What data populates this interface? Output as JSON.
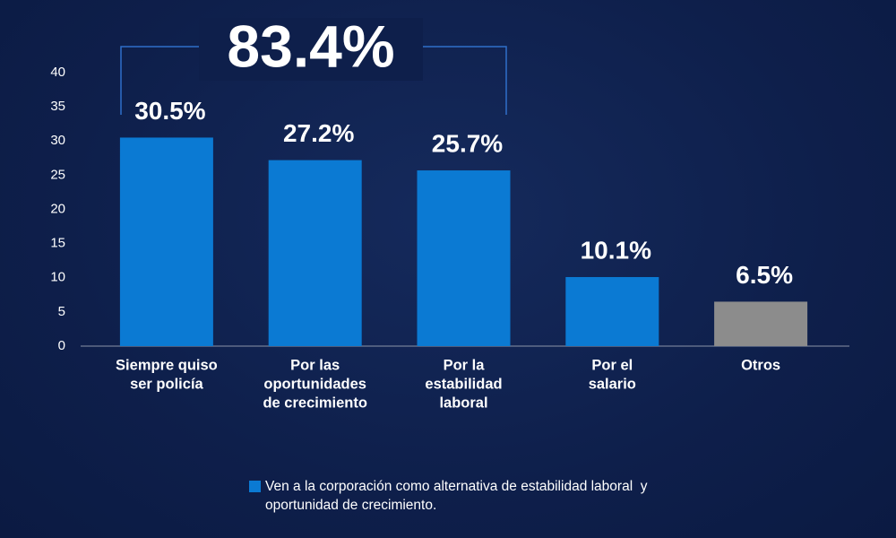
{
  "chart_data": {
    "type": "bar",
    "annotation": "83.4%",
    "categories": [
      [
        "Siempre quiso",
        "ser policía"
      ],
      [
        "Por las",
        "oportunidades",
        "de crecimiento"
      ],
      [
        "Por la",
        "estabilidad",
        "laboral"
      ],
      [
        "Por el",
        "salario"
      ],
      [
        "Otros"
      ]
    ],
    "series": [
      {
        "name": "Ven a la corporación como alternativa de estabilidad laboral  y oportunidad de crecimiento.",
        "color": "#0b7ad3",
        "values": [
          30.5,
          27.2,
          25.7,
          10.1,
          6.5
        ],
        "value_labels": [
          "30.5%",
          "27.2%",
          "25.7%",
          "10.1%",
          "6.5%"
        ],
        "colors": [
          "#0b7ad3",
          "#0b7ad3",
          "#0b7ad3",
          "#0b7ad3",
          "#8c8c8c"
        ]
      }
    ],
    "ylim": [
      0,
      40
    ],
    "yticks": [
      0,
      5,
      10,
      15,
      20,
      25,
      30,
      35,
      40
    ],
    "grid": false
  }
}
